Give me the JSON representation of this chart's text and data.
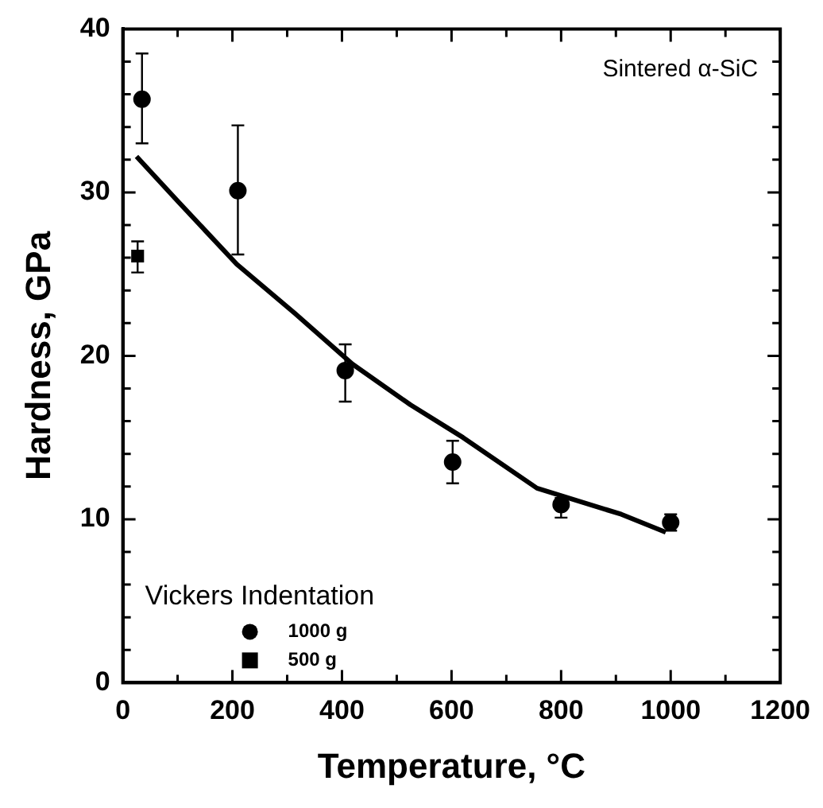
{
  "chart_data": {
    "type": "scatter",
    "xlabel": "Temperature, °C",
    "ylabel": "Hardness, GPa",
    "legend_title": "Vickers Indentation",
    "legend": "bottom left",
    "marker": "circle",
    "grid": false,
    "xlim": [
      0,
      1200
    ],
    "xticks": [
      0,
      {
        "value": 100,
        "label": null
      },
      200,
      {
        "value": 300,
        "label": null
      },
      400,
      {
        "value": 500,
        "label": null
      },
      600,
      {
        "value": 700,
        "label": null
      },
      800,
      {
        "value": 900,
        "label": null
      },
      1000,
      {
        "value": 1100,
        "label": null
      },
      1200
    ],
    "ylim": [
      0,
      40
    ],
    "yticks": [
      0,
      {
        "value": 2,
        "label": null
      },
      {
        "value": 4,
        "label": null
      },
      {
        "value": 6,
        "label": null
      },
      {
        "value": 8,
        "label": null
      },
      10,
      {
        "value": 12,
        "label": null
      },
      {
        "value": 14,
        "label": null
      },
      {
        "value": 16,
        "label": null
      },
      {
        "value": 18,
        "label": null
      },
      20,
      {
        "value": 22,
        "label": null
      },
      {
        "value": 24,
        "label": null
      },
      {
        "value": 26,
        "label": null
      },
      {
        "value": 28,
        "label": null
      },
      30,
      {
        "value": 32,
        "label": null
      },
      {
        "value": 34,
        "label": null
      },
      {
        "value": 36,
        "label": null
      },
      {
        "value": 38,
        "label": null
      },
      40
    ],
    "annotations": [
      "Sintered α-SiC"
    ],
    "series": [
      {
        "type": "line",
        "color": "#000000",
        "marker": "none",
        "line_style": "solid",
        "x": [
          25,
          102,
          208,
          314,
          419,
          525,
          621,
          756,
          910,
          991
        ],
        "values": [
          32.2,
          29.4,
          25.6,
          22.6,
          19.5,
          17.0,
          15.0,
          11.9,
          10.3,
          9.2
        ]
      },
      {
        "name": "1000 g",
        "color": "#000000",
        "x": [
          35,
          210,
          406,
          602,
          800,
          1000
        ],
        "values": [
          35.7,
          30.1,
          19.1,
          13.5,
          10.9,
          9.8
        ],
        "errors": [
          [
            33.0,
            38.5
          ],
          [
            26.2,
            34.1
          ],
          [
            17.2,
            20.7
          ],
          [
            12.2,
            14.8
          ],
          [
            10.1,
            11.3
          ],
          [
            9.3,
            10.3
          ]
        ]
      },
      {
        "name": "500 g",
        "color": "#000000",
        "marker": "square",
        "x": [
          27
        ],
        "values": [
          26.1
        ],
        "errors": [
          [
            25.1,
            27.0
          ]
        ]
      }
    ]
  }
}
